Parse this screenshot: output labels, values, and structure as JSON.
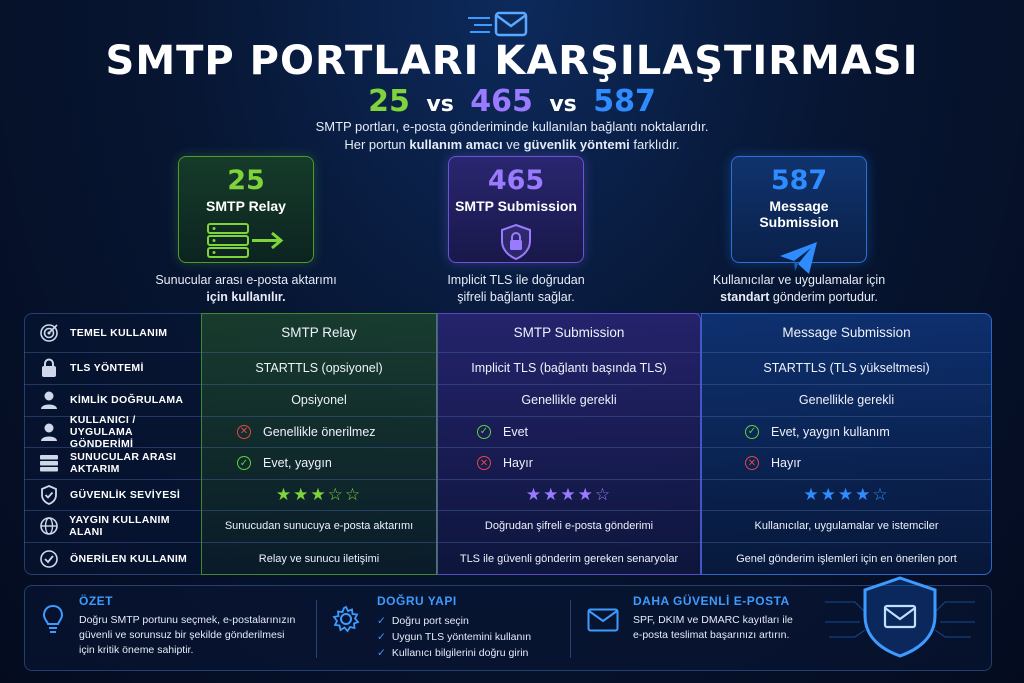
{
  "header": {
    "title": "SMTP PORTLARI KARŞILAŞTIRMASI",
    "port_25": "25",
    "port_465": "465",
    "port_587": "587",
    "vs": "vs",
    "subtitle_line1": "SMTP portları, e-posta gönderiminde kullanılan bağlantı noktalarıdır.",
    "subtitle_line2_pre": "Her portun ",
    "subtitle_line2_b1": "kullanım amacı",
    "subtitle_line2_mid": " ve ",
    "subtitle_line2_b2": "güvenlik yöntemi",
    "subtitle_line2_post": " farklıdır."
  },
  "cards": [
    {
      "number": "25",
      "name": "SMTP Relay",
      "icon": "server-arrow-icon",
      "color": "#7ed43a",
      "desc_line1": "Sunucular arası e-posta aktarımı",
      "desc_line2": "için kullanılır."
    },
    {
      "number": "465",
      "name": "SMTP Submission",
      "icon": "shield-lock-icon",
      "color": "#9a7bff",
      "desc_line1": "Implicit TLS ile doğrudan",
      "desc_line2": "şifreli bağlantı sağlar."
    },
    {
      "number": "587",
      "name": "Message Submission",
      "icon": "paper-plane-icon",
      "color": "#2f8cff",
      "desc_line1": "Kullanıcılar ve uygulamalar için",
      "desc_line2_b": "standart",
      "desc_line2": " gönderim portudur."
    }
  ],
  "table": {
    "rows": [
      {
        "label": "TEMEL KULLANIM",
        "icon": "target-icon",
        "c1": "SMTP Relay",
        "c2": "SMTP Submission",
        "c3": "Message Submission"
      },
      {
        "label": "TLS YÖNTEMİ",
        "icon": "lock-icon",
        "c1": "STARTTLS (opsiyonel)",
        "c2": "Implicit TLS (bağlantı başında TLS)",
        "c3": "STARTTLS (TLS yükseltmesi)"
      },
      {
        "label": "KİMLİK DOĞRULAMA",
        "icon": "user-icon",
        "c1": "Opsiyonel",
        "c2": "Genellikle gerekli",
        "c3": "Genellikle gerekli"
      },
      {
        "label_line1": "KULLANICI / UYGULAMA",
        "label_line2": "GÖNDERİMİ",
        "icon": "user-icon",
        "c1": "Genellikle önerilmez",
        "c1_mark": "no",
        "c2": "Evet",
        "c2_mark": "yes",
        "c3": "Evet, yaygın kullanım",
        "c3_mark": "yes"
      },
      {
        "label_line1": "SUNUCULAR ARASI",
        "label_line2": "AKTARIM",
        "icon": "server-icon",
        "c1": "Evet, yaygın",
        "c1_mark": "yes",
        "c2": "Hayır",
        "c2_mark": "no",
        "c3": "Hayır",
        "c3_mark": "no"
      },
      {
        "label": "GÜVENLİK SEVİYESİ",
        "icon": "shield-icon",
        "c1_stars": 3,
        "c2_stars": 4,
        "c3_stars": 4,
        "stars_max": 5
      },
      {
        "label": "YAYGIN KULLANIM ALANI",
        "icon": "globe-icon",
        "c1": "Sunucudan sunucuya e-posta aktarımı",
        "c2": "Doğrudan şifreli e-posta gönderimi",
        "c3": "Kullanıcılar, uygulamalar ve istemciler"
      },
      {
        "label": "ÖNERİLEN KULLANIM",
        "icon": "check-circle-icon",
        "c1": "Relay ve sunucu iletişimi",
        "c2": "TLS ile güvenli gönderim gereken senaryolar",
        "c3": "Genel gönderim işlemleri için en önerilen port"
      }
    ]
  },
  "summary": {
    "title": "ÖZET",
    "line1": "Doğru SMTP portunu seçmek, e-postalarınızın",
    "line2": "güvenli ve sorunsuz bir şekilde gönderilmesi",
    "line3": "için kritik öneme sahiptir."
  },
  "correct": {
    "title": "DOĞRU YAPI",
    "items": [
      "Doğru port seçin",
      "Uygun TLS yöntemini kullanın",
      "Kullanıcı bilgilerini doğru girin"
    ]
  },
  "secure": {
    "title": "DAHA GÜVENLİ E-POSTA",
    "line1": "SPF, DKIM ve DMARC kayıtları ile",
    "line2": "e-posta teslimat başarınızı artırın."
  },
  "colors": {
    "green": "#7ed43a",
    "purple": "#9a7bff",
    "blue": "#2f8cff",
    "accent": "#3d9bff"
  }
}
